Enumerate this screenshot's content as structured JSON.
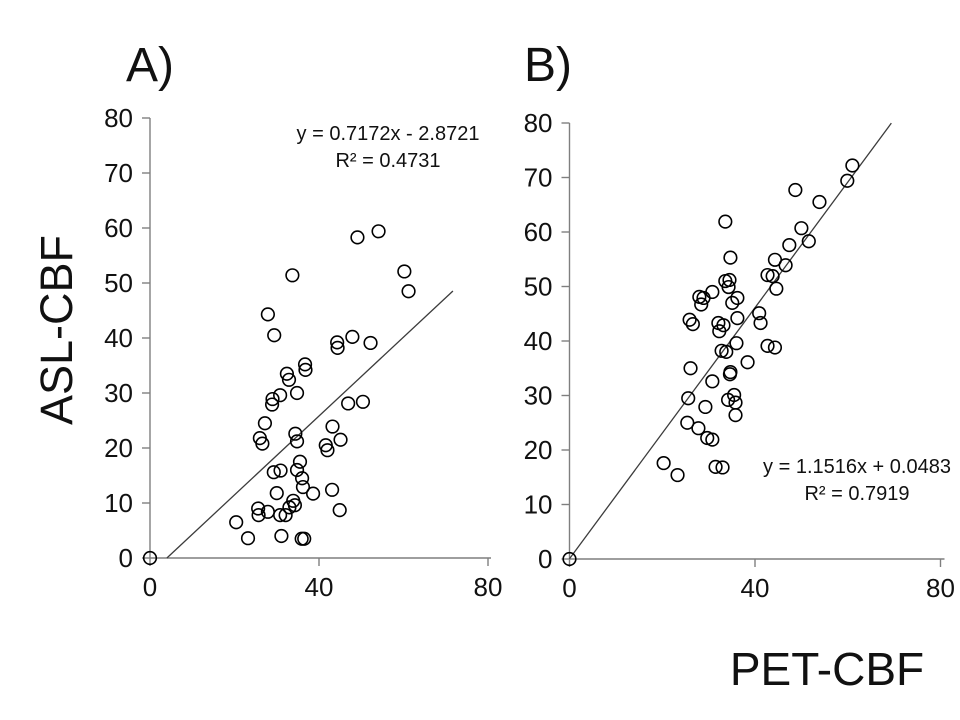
{
  "figure": {
    "background": "#ffffff",
    "ylabel": "ASL-CBF",
    "xlabel": "PET-CBF"
  },
  "colors": {
    "axis": "#7f7f7f",
    "marker_stroke": "#000000",
    "trendline": "#3c3c3c",
    "text": "#111111"
  },
  "chart_data": [
    {
      "type": "scatter",
      "title": "A)",
      "equation": "y = 0.7172x - 2.8721",
      "r_squared": "R² = 0.4731",
      "xlabel": "PET-CBF",
      "ylabel": "ASL-CBF",
      "xlim": [
        0,
        80
      ],
      "ylim": [
        0,
        80
      ],
      "x_ticks": [
        0,
        40,
        80
      ],
      "y_ticks": [
        0,
        10,
        20,
        30,
        40,
        50,
        60,
        70,
        80
      ],
      "grid": false,
      "trendline": {
        "slope": 0.7172,
        "intercept": -2.8721,
        "x_start": 4.0,
        "x_end": 71.7
      },
      "points": [
        [
          0,
          0
        ],
        [
          20.4,
          6.5
        ],
        [
          23.2,
          3.6
        ],
        [
          31.1,
          4
        ],
        [
          35.9,
          3.5
        ],
        [
          36.5,
          3.5
        ],
        [
          25.6,
          9
        ],
        [
          25.7,
          7.8
        ],
        [
          27.9,
          8.4
        ],
        [
          30.8,
          7.8
        ],
        [
          32.1,
          7.8
        ],
        [
          33,
          9.2
        ],
        [
          33.9,
          10.4
        ],
        [
          34.3,
          9.6
        ],
        [
          30,
          11.8
        ],
        [
          38.6,
          11.7
        ],
        [
          43.1,
          12.4
        ],
        [
          44.9,
          8.7
        ],
        [
          36.2,
          12.9
        ],
        [
          36,
          14.5
        ],
        [
          34.8,
          16
        ],
        [
          29.3,
          15.6
        ],
        [
          30.9,
          15.9
        ],
        [
          35.5,
          17.5
        ],
        [
          26,
          21.8
        ],
        [
          26.6,
          20.8
        ],
        [
          34.4,
          22.6
        ],
        [
          34.8,
          21.2
        ],
        [
          41.6,
          20.5
        ],
        [
          42,
          19.6
        ],
        [
          43.2,
          23.9
        ],
        [
          45.1,
          21.5
        ],
        [
          27.2,
          24.5
        ],
        [
          29,
          28.9
        ],
        [
          28.9,
          27.9
        ],
        [
          30.8,
          29.6
        ],
        [
          34.8,
          30
        ],
        [
          46.9,
          28.1
        ],
        [
          50.4,
          28.4
        ],
        [
          32.4,
          33.5
        ],
        [
          32.9,
          32.4
        ],
        [
          36.7,
          35.2
        ],
        [
          36.8,
          34.2
        ],
        [
          27.9,
          44.3
        ],
        [
          29.4,
          40.5
        ],
        [
          33.7,
          51.4
        ],
        [
          44.3,
          39.2
        ],
        [
          44.4,
          38.2
        ],
        [
          47.9,
          40.2
        ],
        [
          52.2,
          39.1
        ],
        [
          49.1,
          58.3
        ],
        [
          54.1,
          59.4
        ],
        [
          60.2,
          52.1
        ],
        [
          61.2,
          48.5
        ]
      ]
    },
    {
      "type": "scatter",
      "title": "B)",
      "equation": "y = 1.1516x + 0.0483",
      "r_squared": "R² = 0.7919",
      "xlabel": "PET-CBF",
      "ylabel": "ASL-CBF",
      "xlim": [
        0,
        80
      ],
      "ylim": [
        0,
        80
      ],
      "x_ticks": [
        0,
        40,
        80
      ],
      "y_ticks": [
        0,
        10,
        20,
        30,
        40,
        50,
        60,
        70,
        80
      ],
      "grid": false,
      "trendline": {
        "slope": 1.1516,
        "intercept": 0.0483,
        "x_start": 0,
        "x_end": 69.4
      },
      "points": [
        [
          0,
          0
        ],
        [
          20.3,
          17.6
        ],
        [
          23.3,
          15.4
        ],
        [
          31.5,
          16.9
        ],
        [
          33,
          16.8
        ],
        [
          25.4,
          25
        ],
        [
          27.8,
          24
        ],
        [
          29.7,
          22.2
        ],
        [
          30.8,
          21.9
        ],
        [
          25.6,
          29.5
        ],
        [
          29.3,
          27.9
        ],
        [
          34.2,
          29.2
        ],
        [
          35.5,
          30.1
        ],
        [
          35.8,
          28.7
        ],
        [
          35.8,
          26.4
        ],
        [
          30.8,
          32.6
        ],
        [
          34.6,
          33.9
        ],
        [
          26.1,
          35
        ],
        [
          34.7,
          34.3
        ],
        [
          32.8,
          38.2
        ],
        [
          33.8,
          38
        ],
        [
          36,
          39.6
        ],
        [
          38.4,
          36.1
        ],
        [
          42.7,
          39.1
        ],
        [
          44.3,
          38.8
        ],
        [
          25.9,
          43.9
        ],
        [
          26.6,
          43.1
        ],
        [
          32.1,
          43.3
        ],
        [
          33.2,
          42.9
        ],
        [
          32.3,
          41.8
        ],
        [
          36.2,
          44.2
        ],
        [
          40.9,
          45.1
        ],
        [
          41.2,
          43.3
        ],
        [
          28,
          48.1
        ],
        [
          28.9,
          47.9
        ],
        [
          28.4,
          46.7
        ],
        [
          30.8,
          49
        ],
        [
          35.1,
          47
        ],
        [
          36.2,
          47.9
        ],
        [
          33.6,
          51
        ],
        [
          34.5,
          51.2
        ],
        [
          34.3,
          49.9
        ],
        [
          42.7,
          52.1
        ],
        [
          43.8,
          51.9
        ],
        [
          44.6,
          49.6
        ],
        [
          44.3,
          54.9
        ],
        [
          46.6,
          53.9
        ],
        [
          34.7,
          55.3
        ],
        [
          47.4,
          57.6
        ],
        [
          50,
          60.7
        ],
        [
          51.6,
          58.3
        ],
        [
          33.6,
          61.9
        ],
        [
          53.9,
          65.5
        ],
        [
          48.7,
          67.7
        ],
        [
          59.9,
          69.4
        ],
        [
          61,
          72.2
        ]
      ]
    }
  ]
}
